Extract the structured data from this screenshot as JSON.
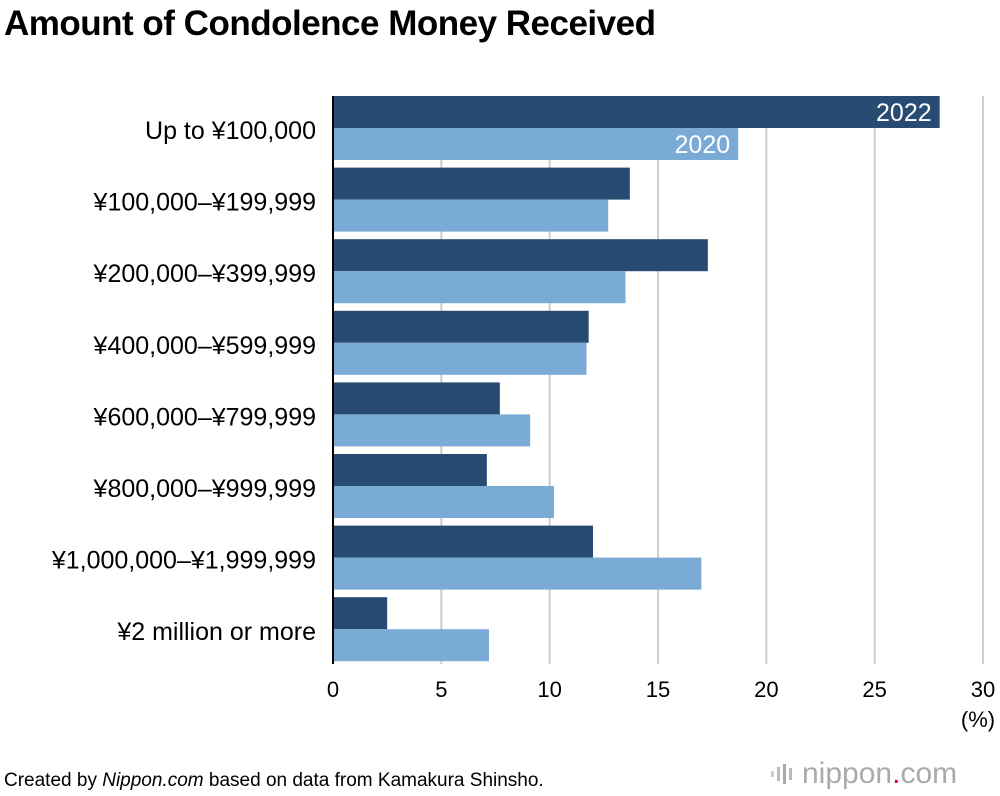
{
  "title": "Amount of Condolence Money Received",
  "footer": {
    "prefix": "Created by ",
    "source_name": "Nippon.com",
    "suffix": " based on data from Kamakura Shinsho."
  },
  "brand": {
    "name": "nippon",
    "dot": ".",
    "tld": "com"
  },
  "colors": {
    "series_2022": "#274b73",
    "series_2020": "#7aaad6",
    "grid": "#cccccc",
    "axis": "#000000"
  },
  "chart_data": {
    "type": "bar",
    "orientation": "horizontal",
    "title": "Amount of Condolence Money Received",
    "categories": [
      "Up to ¥100,000",
      "¥100,000–¥199,999",
      "¥200,000–¥399,999",
      "¥400,000–¥599,999",
      "¥600,000–¥799,999",
      "¥800,000–¥999,999",
      "¥1,000,000–¥1,999,999",
      "¥2 million or more"
    ],
    "series": [
      {
        "name": "2022",
        "values": [
          28.0,
          13.7,
          17.3,
          11.8,
          7.7,
          7.1,
          12.0,
          2.5
        ]
      },
      {
        "name": "2020",
        "values": [
          18.7,
          12.7,
          13.5,
          11.7,
          9.1,
          10.2,
          17.0,
          7.2
        ]
      }
    ],
    "xlim": [
      0,
      30
    ],
    "xticks": [
      0,
      5,
      10,
      15,
      20,
      25,
      30
    ],
    "xlabel": "(%)",
    "grid": true,
    "legend": "inline labels on first category bars"
  }
}
